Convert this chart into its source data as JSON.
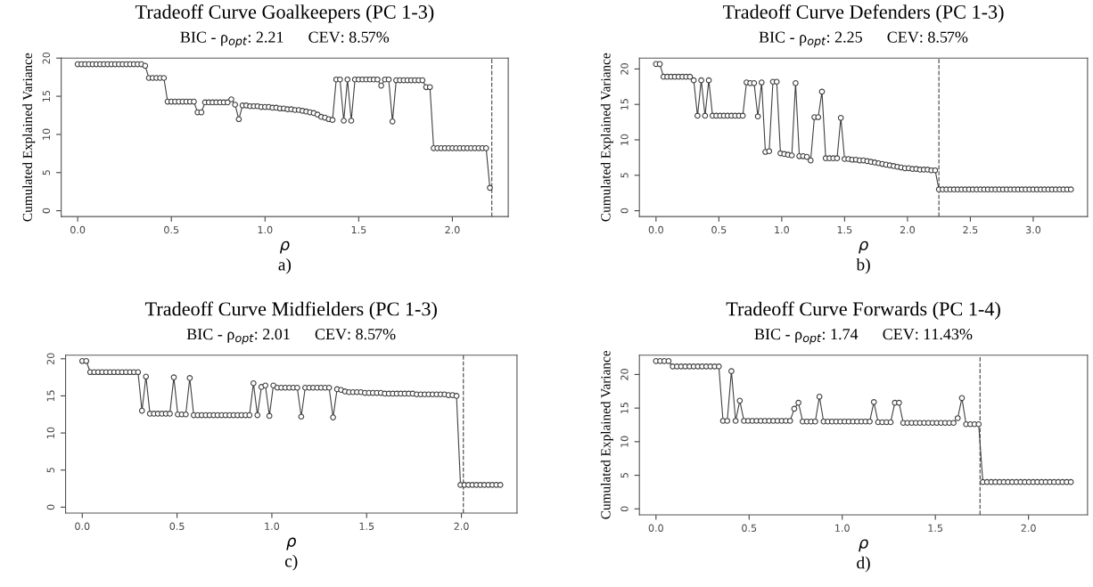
{
  "chart_data": [
    {
      "type": "line",
      "title": "Tradeoff Curve Goalkeepers (PC 1-3)",
      "subtitle": "BIC - ρ$_{opt}$: 2.21      CEV: 8.57%",
      "xlabel": "ρ",
      "ylabel": "Cumulated Explained Variance",
      "annotations": [
        "a)"
      ],
      "marker": "circle",
      "line_style": "solid",
      "x": [
        0,
        0.02,
        0.04,
        0.06,
        0.08,
        0.1,
        0.12,
        0.14,
        0.16,
        0.18,
        0.2,
        0.22,
        0.24,
        0.26,
        0.28,
        0.3,
        0.32,
        0.34,
        0.36,
        0.38,
        0.4,
        0.42,
        0.44,
        0.46,
        0.48,
        0.5,
        0.52,
        0.54,
        0.56,
        0.58,
        0.6,
        0.62,
        0.64,
        0.66,
        0.68,
        0.7,
        0.72,
        0.74,
        0.76,
        0.78,
        0.8,
        0.82,
        0.84,
        0.86,
        0.88,
        0.9,
        0.92,
        0.94,
        0.96,
        0.98,
        1,
        1.02,
        1.04,
        1.06,
        1.08,
        1.1,
        1.12,
        1.14,
        1.16,
        1.18,
        1.2,
        1.22,
        1.24,
        1.26,
        1.28,
        1.3,
        1.32,
        1.34,
        1.36,
        1.38,
        1.4,
        1.42,
        1.44,
        1.46,
        1.48,
        1.5,
        1.52,
        1.54,
        1.56,
        1.58,
        1.6,
        1.62,
        1.64,
        1.66,
        1.68,
        1.7,
        1.72,
        1.74,
        1.76,
        1.78,
        1.8,
        1.82,
        1.84,
        1.86,
        1.88,
        1.9,
        1.92,
        1.94,
        1.96,
        1.98,
        2,
        2.02,
        2.04,
        2.06,
        2.08,
        2.1,
        2.12,
        2.14,
        2.16,
        2.18,
        2.2
      ],
      "series": [
        {
          "color": "#404040",
          "values": [
            19.2,
            19.2,
            19.2,
            19.2,
            19.2,
            19.2,
            19.2,
            19.2,
            19.2,
            19.2,
            19.2,
            19.2,
            19.2,
            19.2,
            19.2,
            19.2,
            19.2,
            19.2,
            19.0,
            17.4,
            17.4,
            17.4,
            17.4,
            17.4,
            14.3,
            14.3,
            14.3,
            14.3,
            14.3,
            14.3,
            14.3,
            14.3,
            12.9,
            12.9,
            14.2,
            14.2,
            14.2,
            14.2,
            14.2,
            14.2,
            14.2,
            14.6,
            13.9,
            12.0,
            13.8,
            13.8,
            13.7,
            13.7,
            13.7,
            13.6,
            13.6,
            13.6,
            13.5,
            13.5,
            13.4,
            13.4,
            13.3,
            13.3,
            13.2,
            13.2,
            13.1,
            13.0,
            12.9,
            12.8,
            12.6,
            12.3,
            12.2,
            12.0,
            11.9,
            17.2,
            17.2,
            11.8,
            17.2,
            11.8,
            17.2,
            17.2,
            17.2,
            17.2,
            17.2,
            17.2,
            17.2,
            16.4,
            17.2,
            17.2,
            11.7,
            17.1,
            17.1,
            17.1,
            17.1,
            17.1,
            17.1,
            17.1,
            17.1,
            16.2,
            16.2,
            8.2,
            8.2,
            8.2,
            8.2,
            8.2,
            8.2,
            8.2,
            8.2,
            8.2,
            8.2,
            8.2,
            8.2,
            8.2,
            8.2,
            8.2,
            3.0
          ]
        }
      ],
      "ref_lines": [
        {
          "axis": "x",
          "value": 2.21,
          "line_style": "dashed",
          "color": "#555555"
        }
      ],
      "xlim": [
        -0.088,
        2.298
      ],
      "ylim": [
        -0.77,
        20
      ],
      "xticks": [
        {
          "value": 0,
          "label": "0.0"
        },
        {
          "value": 0.5,
          "label": "0.5"
        },
        {
          "value": 1,
          "label": "1.0"
        },
        {
          "value": 1.5,
          "label": "1.5"
        },
        {
          "value": 2,
          "label": "2.0"
        }
      ],
      "yticks": [
        0,
        5,
        10,
        15,
        20
      ]
    },
    {
      "type": "line",
      "title": "Tradeoff Curve Defenders (PC 1-3)",
      "subtitle": "BIC - ρ$_{opt}$: 2.25      CEV: 8.57%",
      "xlabel": "ρ",
      "ylabel": "Cumulated Explained Variance",
      "annotations": [
        "b)"
      ],
      "marker": "circle",
      "line_style": "solid",
      "x": [
        0,
        0.03,
        0.06,
        0.09,
        0.12,
        0.15,
        0.18,
        0.21,
        0.24,
        0.27,
        0.3,
        0.33,
        0.36,
        0.39,
        0.42,
        0.45,
        0.48,
        0.51,
        0.54,
        0.57,
        0.6,
        0.63,
        0.66,
        0.69,
        0.72,
        0.75,
        0.78,
        0.81,
        0.84,
        0.87,
        0.9,
        0.93,
        0.96,
        0.99,
        1.02,
        1.05,
        1.08,
        1.11,
        1.14,
        1.17,
        1.2,
        1.23,
        1.26,
        1.29,
        1.32,
        1.35,
        1.38,
        1.41,
        1.44,
        1.47,
        1.5,
        1.53,
        1.56,
        1.59,
        1.62,
        1.65,
        1.68,
        1.71,
        1.74,
        1.77,
        1.8,
        1.83,
        1.86,
        1.89,
        1.92,
        1.95,
        1.98,
        2.01,
        2.04,
        2.07,
        2.1,
        2.13,
        2.16,
        2.19,
        2.22,
        2.25,
        2.28,
        2.31,
        2.34,
        2.37,
        2.4,
        2.43,
        2.46,
        2.49,
        2.52,
        2.55,
        2.58,
        2.61,
        2.64,
        2.67,
        2.7,
        2.73,
        2.76,
        2.79,
        2.82,
        2.85,
        2.88,
        2.91,
        2.94,
        2.97,
        3,
        3.03,
        3.06,
        3.09,
        3.12,
        3.15,
        3.18,
        3.21,
        3.24,
        3.27,
        3.3
      ],
      "series": [
        {
          "color": "#404040",
          "values": [
            20.7,
            20.7,
            18.9,
            18.9,
            18.9,
            18.9,
            18.9,
            18.9,
            18.9,
            18.9,
            18.4,
            13.4,
            18.4,
            13.4,
            18.4,
            13.4,
            13.4,
            13.4,
            13.4,
            13.4,
            13.4,
            13.4,
            13.4,
            13.4,
            18.1,
            18.0,
            18.0,
            13.3,
            18.1,
            8.3,
            8.4,
            18.2,
            18.2,
            8.1,
            8.0,
            7.9,
            7.8,
            18.0,
            7.7,
            7.7,
            7.6,
            7.1,
            13.2,
            13.2,
            16.8,
            7.4,
            7.4,
            7.4,
            7.4,
            13.1,
            7.3,
            7.3,
            7.2,
            7.2,
            7.1,
            7.1,
            7.0,
            6.9,
            6.8,
            6.7,
            6.6,
            6.5,
            6.4,
            6.3,
            6.2,
            6.1,
            6.0,
            6.0,
            5.9,
            5.9,
            5.8,
            5.8,
            5.8,
            5.7,
            5.7,
            3.0,
            3.0,
            3.0,
            3.0,
            3.0,
            3.0,
            3.0,
            3.0,
            3.0,
            3.0,
            3.0,
            3.0,
            3.0,
            3.0,
            3.0,
            3.0,
            3.0,
            3.0,
            3.0,
            3.0,
            3.0,
            3.0,
            3.0,
            3.0,
            3.0,
            3.0,
            3.0,
            3.0,
            3.0,
            3.0,
            3.0,
            3.0,
            3.0,
            3.0,
            3.0,
            3.0
          ]
        }
      ],
      "ref_lines": [
        {
          "axis": "x",
          "value": 2.25,
          "line_style": "dashed",
          "color": "#555555"
        }
      ],
      "xlim": [
        -0.132,
        3.432
      ],
      "ylim": [
        -0.83,
        21.53
      ],
      "xticks": [
        {
          "value": 0,
          "label": "0.0"
        },
        {
          "value": 0.5,
          "label": "0.5"
        },
        {
          "value": 1,
          "label": "1.0"
        },
        {
          "value": 1.5,
          "label": "1.5"
        },
        {
          "value": 2,
          "label": "2.0"
        },
        {
          "value": 2.5,
          "label": "2.5"
        },
        {
          "value": 3,
          "label": "3.0"
        }
      ],
      "yticks": [
        0,
        5,
        10,
        15,
        20
      ]
    },
    {
      "type": "line",
      "title": "Tradeoff Curve Midfielders (PC 1-3)",
      "subtitle": "BIC - ρ$_{opt}$: 2.01      CEV: 8.57%",
      "xlabel": "ρ",
      "annotations": [
        "c)"
      ],
      "marker": "circle",
      "line_style": "solid",
      "x": [
        0,
        0.021,
        0.042,
        0.063,
        0.084,
        0.105,
        0.126,
        0.147,
        0.168,
        0.189,
        0.21,
        0.231,
        0.252,
        0.273,
        0.294,
        0.315,
        0.336,
        0.357,
        0.378,
        0.399,
        0.42,
        0.441,
        0.462,
        0.483,
        0.504,
        0.525,
        0.546,
        0.567,
        0.588,
        0.609,
        0.63,
        0.651,
        0.672,
        0.693,
        0.714,
        0.735,
        0.756,
        0.777,
        0.798,
        0.819,
        0.84,
        0.861,
        0.882,
        0.903,
        0.924,
        0.945,
        0.966,
        0.987,
        1.008,
        1.029,
        1.05,
        1.071,
        1.092,
        1.113,
        1.134,
        1.155,
        1.176,
        1.197,
        1.218,
        1.239,
        1.26,
        1.281,
        1.302,
        1.323,
        1.344,
        1.365,
        1.386,
        1.407,
        1.428,
        1.449,
        1.47,
        1.491,
        1.512,
        1.533,
        1.554,
        1.575,
        1.596,
        1.617,
        1.638,
        1.659,
        1.68,
        1.701,
        1.722,
        1.743,
        1.764,
        1.785,
        1.806,
        1.827,
        1.848,
        1.869,
        1.89,
        1.911,
        1.932,
        1.953,
        1.974,
        1.995,
        2.016,
        2.037,
        2.058,
        2.079,
        2.1,
        2.121,
        2.142,
        2.163,
        2.184,
        2.205
      ],
      "series": [
        {
          "color": "#404040",
          "values": [
            19.7,
            19.7,
            18.2,
            18.2,
            18.2,
            18.2,
            18.2,
            18.2,
            18.2,
            18.2,
            18.2,
            18.2,
            18.2,
            18.2,
            18.2,
            13.0,
            17.6,
            12.6,
            12.6,
            12.6,
            12.6,
            12.6,
            12.6,
            17.5,
            12.5,
            12.5,
            12.5,
            17.4,
            12.4,
            12.4,
            12.4,
            12.4,
            12.4,
            12.4,
            12.4,
            12.4,
            12.4,
            12.4,
            12.4,
            12.4,
            12.4,
            12.4,
            12.4,
            16.7,
            12.4,
            16.2,
            16.4,
            12.3,
            16.4,
            16.1,
            16.1,
            16.1,
            16.1,
            16.1,
            16.1,
            12.2,
            16.1,
            16.1,
            16.1,
            16.1,
            16.1,
            16.1,
            16.1,
            12.1,
            15.9,
            15.8,
            15.6,
            15.5,
            15.5,
            15.5,
            15.5,
            15.4,
            15.4,
            15.4,
            15.4,
            15.4,
            15.3,
            15.3,
            15.3,
            15.3,
            15.3,
            15.3,
            15.3,
            15.3,
            15.2,
            15.2,
            15.2,
            15.2,
            15.2,
            15.2,
            15.2,
            15.2,
            15.1,
            15.1,
            15.0,
            3.0,
            3.0,
            3.0,
            3.0,
            3.0,
            3.0,
            3.0,
            3.0,
            3.0,
            3.0,
            3.0
          ]
        }
      ],
      "ref_lines": [
        {
          "axis": "x",
          "value": 2.01,
          "line_style": "dashed",
          "color": "#555555"
        }
      ],
      "xlim": [
        -0.088,
        2.293
      ],
      "ylim": [
        -0.79,
        20.49
      ],
      "xticks": [
        {
          "value": 0,
          "label": "0.0"
        },
        {
          "value": 0.5,
          "label": "0.5"
        },
        {
          "value": 1,
          "label": "1.0"
        },
        {
          "value": 1.5,
          "label": "1.5"
        },
        {
          "value": 2,
          "label": "2.0"
        }
      ],
      "yticks": [
        0,
        5,
        10,
        15,
        20
      ]
    },
    {
      "type": "line",
      "title": "Tradeoff Curve Forwards (PC 1-4)",
      "subtitle": "BIC - ρ$_{opt}$: 1.74      CEV: 11.43%",
      "xlabel": "ρ",
      "ylabel": "Cumulated Explained Variance",
      "annotations": [
        "d)"
      ],
      "marker": "circle",
      "line_style": "solid",
      "x": [
        0,
        0.0225,
        0.045,
        0.0675,
        0.09,
        0.1125,
        0.135,
        0.1575,
        0.18,
        0.2025,
        0.225,
        0.2475,
        0.27,
        0.2925,
        0.315,
        0.3375,
        0.36,
        0.3825,
        0.405,
        0.4275,
        0.45,
        0.4725,
        0.495,
        0.5175,
        0.54,
        0.5625,
        0.585,
        0.6075,
        0.63,
        0.6525,
        0.675,
        0.6975,
        0.72,
        0.7425,
        0.765,
        0.7875,
        0.81,
        0.8325,
        0.855,
        0.8775,
        0.9,
        0.9225,
        0.945,
        0.9675,
        0.99,
        1.0125,
        1.035,
        1.0575,
        1.08,
        1.1025,
        1.125,
        1.1475,
        1.17,
        1.1925,
        1.215,
        1.2375,
        1.26,
        1.2825,
        1.305,
        1.3275,
        1.35,
        1.3725,
        1.395,
        1.4175,
        1.44,
        1.4625,
        1.485,
        1.5075,
        1.53,
        1.5525,
        1.575,
        1.5975,
        1.62,
        1.6425,
        1.665,
        1.6875,
        1.71,
        1.7325,
        1.755,
        1.7775,
        1.8,
        1.8225,
        1.845,
        1.8675,
        1.89,
        1.9125,
        1.935,
        1.9575,
        1.98,
        2.0025,
        2.025,
        2.0475,
        2.07,
        2.0925,
        2.115,
        2.1375,
        2.16,
        2.1825,
        2.205,
        2.2275
      ],
      "series": [
        {
          "color": "#404040",
          "values": [
            22.0,
            22.0,
            22.0,
            22.0,
            21.2,
            21.2,
            21.2,
            21.2,
            21.2,
            21.2,
            21.2,
            21.2,
            21.2,
            21.2,
            21.2,
            21.2,
            13.1,
            13.1,
            20.5,
            13.1,
            16.1,
            13.1,
            13.1,
            13.1,
            13.1,
            13.1,
            13.1,
            13.1,
            13.1,
            13.1,
            13.1,
            13.1,
            13.1,
            14.9,
            15.8,
            13.0,
            13.0,
            13.0,
            13.0,
            16.7,
            13.0,
            13.0,
            13.0,
            13.0,
            13.0,
            13.0,
            13.0,
            13.0,
            13.0,
            13.0,
            13.0,
            13.0,
            15.9,
            12.9,
            12.9,
            12.9,
            12.9,
            15.8,
            15.8,
            12.8,
            12.8,
            12.8,
            12.8,
            12.8,
            12.8,
            12.8,
            12.8,
            12.8,
            12.8,
            12.8,
            12.8,
            12.8,
            13.5,
            16.5,
            12.6,
            12.6,
            12.6,
            12.6,
            4.0,
            4.0,
            4.0,
            4.0,
            4.0,
            4.0,
            4.0,
            4.0,
            4.0,
            4.0,
            4.0,
            4.0,
            4.0,
            4.0,
            4.0,
            4.0,
            4.0,
            4.0,
            4.0,
            4.0,
            4.0,
            4.0
          ]
        }
      ],
      "ref_lines": [
        {
          "axis": "x",
          "value": 1.74,
          "line_style": "dashed",
          "color": "#555555"
        }
      ],
      "xlim": [
        -0.089,
        2.317
      ],
      "ylim": [
        -0.88,
        22.88
      ],
      "xticks": [
        {
          "value": 0,
          "label": "0.0"
        },
        {
          "value": 0.5,
          "label": "0.5"
        },
        {
          "value": 1,
          "label": "1.0"
        },
        {
          "value": 1.5,
          "label": "1.5"
        },
        {
          "value": 2,
          "label": "2.0"
        }
      ],
      "yticks": [
        0,
        5,
        10,
        15,
        20
      ]
    }
  ]
}
